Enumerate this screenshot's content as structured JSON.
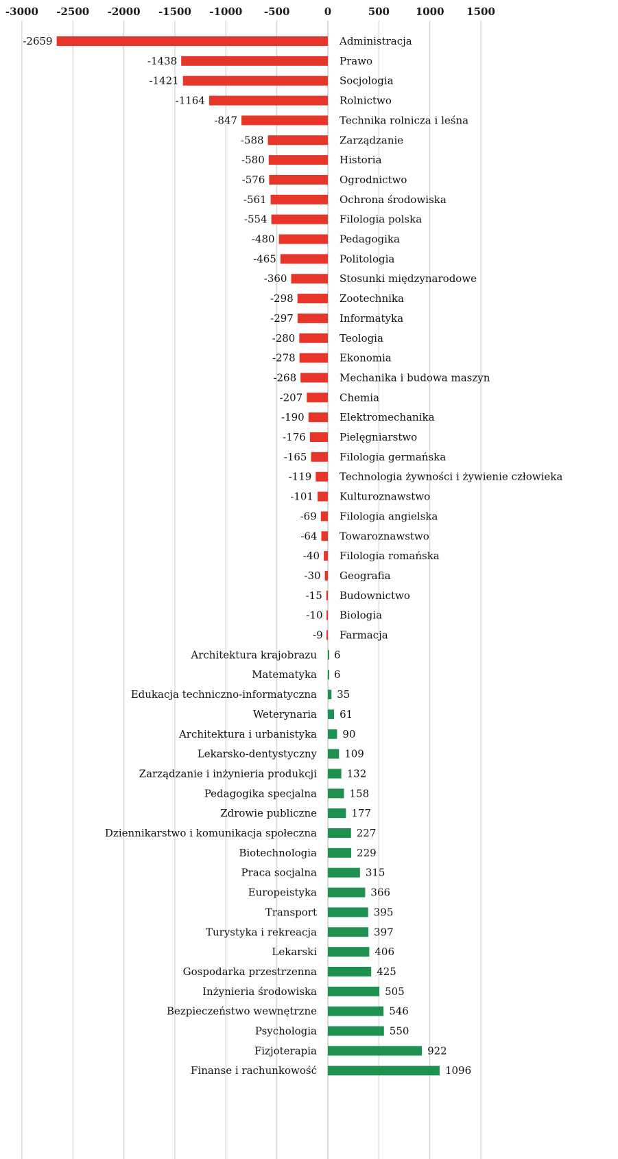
{
  "chart_data": {
    "type": "bar",
    "orientation": "horizontal",
    "xlim": [
      -3000,
      1500
    ],
    "ticks": [
      -3000,
      -2500,
      -2000,
      -1500,
      -1000,
      -500,
      0,
      500,
      1000,
      1500
    ],
    "grid": true,
    "colors": {
      "negative": "#e8352a",
      "positive": "#1e9150"
    },
    "categories": [
      "Administracja",
      "Prawo",
      "Socjologia",
      "Rolnictwo",
      "Technika rolnicza i leśna",
      "Zarządzanie",
      "Historia",
      "Ogrodnictwo",
      "Ochrona środowiska",
      "Filologia polska",
      "Pedagogika",
      "Politologia",
      "Stosunki międzynarodowe",
      "Zootechnika",
      "Informatyka",
      "Teologia",
      "Ekonomia",
      "Mechanika i budowa maszyn",
      "Chemia",
      "Elektromechanika",
      "Pielęgniarstwo",
      "Filologia germańska",
      "Technologia żywności i żywienie człowieka",
      "Kulturoznawstwo",
      "Filologia angielska",
      "Towaroznawstwo",
      "Filologia romańska",
      "Geografia",
      "Budownictwo",
      "Biologia",
      "Farmacja",
      "Architektura krajobrazu",
      "Matematyka",
      "Edukacja techniczno-informatyczna",
      "Weterynaria",
      "Architektura i urbanistyka",
      "Lekarsko-dentystyczny",
      "Zarządzanie i inżynieria produkcji",
      "Pedagogika specjalna",
      "Zdrowie publiczne",
      "Dziennikarstwo i komunikacja społeczna",
      "Biotechnologia",
      "Praca socjalna",
      "Europeistyka",
      "Transport",
      "Turystyka i rekreacja",
      "Lekarski",
      "Gospodarka przestrzenna",
      "Inżynieria środowiska",
      "Bezpieczeństwo wewnętrzne",
      "Psychologia",
      "Fizjoterapia",
      "Finanse i rachunkowość"
    ],
    "values": [
      -2659,
      -1438,
      -1421,
      -1164,
      -847,
      -588,
      -580,
      -576,
      -561,
      -554,
      -480,
      -465,
      -360,
      -298,
      -297,
      -280,
      -278,
      -268,
      -207,
      -190,
      -176,
      -165,
      -119,
      -101,
      -69,
      -64,
      -40,
      -30,
      -15,
      -10,
      -9,
      6,
      6,
      35,
      61,
      90,
      109,
      132,
      158,
      177,
      227,
      229,
      315,
      366,
      395,
      397,
      406,
      425,
      505,
      546,
      550,
      922,
      1096
    ]
  }
}
